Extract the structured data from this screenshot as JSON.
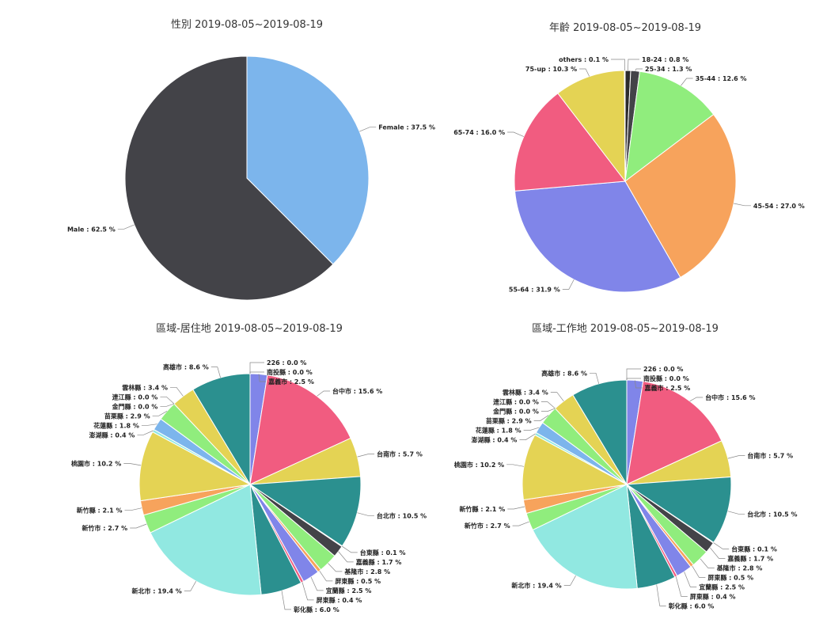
{
  "chart_data": [
    {
      "type": "pie",
      "title": "性別 2019-08-05~2019-08-19",
      "slices": [
        {
          "label": "Female : 37.5 %",
          "value": 37.5,
          "color": "#7cb5ec"
        },
        {
          "label": "Male : 62.5 %",
          "value": 62.5,
          "color": "#434348"
        }
      ]
    },
    {
      "type": "pie",
      "title": "年齡 2019-08-05~2019-08-19",
      "slices": [
        {
          "label": "18-24 : 0.8 %",
          "value": 0.8,
          "color": "#2b2b2b"
        },
        {
          "label": "25-34 : 1.3 %",
          "value": 1.3,
          "color": "#434348"
        },
        {
          "label": "35-44 : 12.6 %",
          "value": 12.6,
          "color": "#90ed7d"
        },
        {
          "label": "45-54 : 27.0 %",
          "value": 27.0,
          "color": "#f7a35c"
        },
        {
          "label": "55-64 : 31.9 %",
          "value": 31.9,
          "color": "#8085e9"
        },
        {
          "label": "65-74 : 16.0 %",
          "value": 16.0,
          "color": "#f15c80"
        },
        {
          "label": "75-up : 10.3 %",
          "value": 10.3,
          "color": "#e4d354"
        },
        {
          "label": "others : 0.1 %",
          "value": 0.1,
          "color": "#2b908f"
        }
      ]
    },
    {
      "type": "pie",
      "title": "區域-居住地 2019-08-05~2019-08-19",
      "slices": [
        {
          "label": "226 : 0.0 %",
          "value": 0.0,
          "color": "#7cb5ec"
        },
        {
          "label": "嘉義市 : 2.5 %",
          "value": 2.5,
          "color": "#8085e9"
        },
        {
          "label": "台中市 : 15.6 %",
          "value": 15.6,
          "color": "#f15c80"
        },
        {
          "label": "台南市 : 5.7 %",
          "value": 5.7,
          "color": "#e4d354"
        },
        {
          "label": "台北市 : 10.5 %",
          "value": 10.5,
          "color": "#2b908f"
        },
        {
          "label": "台東縣 : 0.1 %",
          "value": 0.1,
          "color": "#f45b5b"
        },
        {
          "label": "嘉義縣 : 1.7 %",
          "value": 1.7,
          "color": "#434348"
        },
        {
          "label": "基隆市 : 2.8 %",
          "value": 2.8,
          "color": "#90ed7d"
        },
        {
          "label": "屏東縣 : 0.5 %",
          "value": 0.5,
          "color": "#f7a35c"
        },
        {
          "label": "宜蘭縣 : 2.5 %",
          "value": 2.5,
          "color": "#8085e9"
        },
        {
          "label": "屏東縣 : 0.4 %",
          "value": 0.4,
          "color": "#f15c80"
        },
        {
          "label": "彰化縣 : 6.0 %",
          "value": 6.0,
          "color": "#2b908f"
        },
        {
          "label": "新北市 : 19.4 %",
          "value": 19.4,
          "color": "#91e8e1"
        },
        {
          "label": "新竹市 : 2.7 %",
          "value": 2.7,
          "color": "#90ed7d"
        },
        {
          "label": "新竹縣 : 2.1 %",
          "value": 2.1,
          "color": "#f7a35c"
        },
        {
          "label": "桃園市 : 10.2 %",
          "value": 10.2,
          "color": "#e4d354"
        },
        {
          "label": "澎湖縣 : 0.4 %",
          "value": 0.4,
          "color": "#91e8e1"
        },
        {
          "label": "花蓮縣 : 1.8 %",
          "value": 1.8,
          "color": "#7cb5ec"
        },
        {
          "label": "苗栗縣 : 2.9 %",
          "value": 2.9,
          "color": "#90ed7d"
        },
        {
          "label": "連江縣 : 0.0 %",
          "value": 0.0,
          "color": "#f7a35c"
        },
        {
          "label": "金門縣 : 0.0 %",
          "value": 0.0,
          "color": "#8085e9"
        },
        {
          "label": "雲林縣 : 3.4 %",
          "value": 3.4,
          "color": "#e4d354"
        },
        {
          "label": "高雄市 : 8.6 %",
          "value": 8.6,
          "color": "#2b908f"
        },
        {
          "label": "南投縣 : 0.0 %",
          "value": 0.0,
          "color": "#434348"
        }
      ]
    },
    {
      "type": "pie",
      "title": "區域-工作地 2019-08-05~2019-08-19",
      "slices": [
        {
          "label": "226 : 0.0 %",
          "value": 0.0,
          "color": "#7cb5ec"
        },
        {
          "label": "嘉義市 : 2.5 %",
          "value": 2.5,
          "color": "#8085e9"
        },
        {
          "label": "台中市 : 15.6 %",
          "value": 15.6,
          "color": "#f15c80"
        },
        {
          "label": "台南市 : 5.7 %",
          "value": 5.7,
          "color": "#e4d354"
        },
        {
          "label": "台北市 : 10.5 %",
          "value": 10.5,
          "color": "#2b908f"
        },
        {
          "label": "台東縣 : 0.1 %",
          "value": 0.1,
          "color": "#f45b5b"
        },
        {
          "label": "嘉義縣 : 1.7 %",
          "value": 1.7,
          "color": "#434348"
        },
        {
          "label": "基隆市 : 2.8 %",
          "value": 2.8,
          "color": "#90ed7d"
        },
        {
          "label": "屏東縣 : 0.5 %",
          "value": 0.5,
          "color": "#f7a35c"
        },
        {
          "label": "宜蘭縣 : 2.5 %",
          "value": 2.5,
          "color": "#8085e9"
        },
        {
          "label": "屏東縣 : 0.4 %",
          "value": 0.4,
          "color": "#f15c80"
        },
        {
          "label": "彰化縣 : 6.0 %",
          "value": 6.0,
          "color": "#2b908f"
        },
        {
          "label": "新北市 : 19.4 %",
          "value": 19.4,
          "color": "#91e8e1"
        },
        {
          "label": "新竹市 : 2.7 %",
          "value": 2.7,
          "color": "#90ed7d"
        },
        {
          "label": "新竹縣 : 2.1 %",
          "value": 2.1,
          "color": "#f7a35c"
        },
        {
          "label": "桃園市 : 10.2 %",
          "value": 10.2,
          "color": "#e4d354"
        },
        {
          "label": "澎湖縣 : 0.4 %",
          "value": 0.4,
          "color": "#91e8e1"
        },
        {
          "label": "花蓮縣 : 1.8 %",
          "value": 1.8,
          "color": "#7cb5ec"
        },
        {
          "label": "苗栗縣 : 2.9 %",
          "value": 2.9,
          "color": "#90ed7d"
        },
        {
          "label": "連江縣 : 0.0 %",
          "value": 0.0,
          "color": "#f7a35c"
        },
        {
          "label": "金門縣 : 0.0 %",
          "value": 0.0,
          "color": "#8085e9"
        },
        {
          "label": "雲林縣 : 3.4 %",
          "value": 3.4,
          "color": "#e4d354"
        },
        {
          "label": "高雄市 : 8.6 %",
          "value": 8.6,
          "color": "#2b908f"
        },
        {
          "label": "南投縣 : 0.0 %",
          "value": 0.0,
          "color": "#434348"
        }
      ]
    }
  ]
}
